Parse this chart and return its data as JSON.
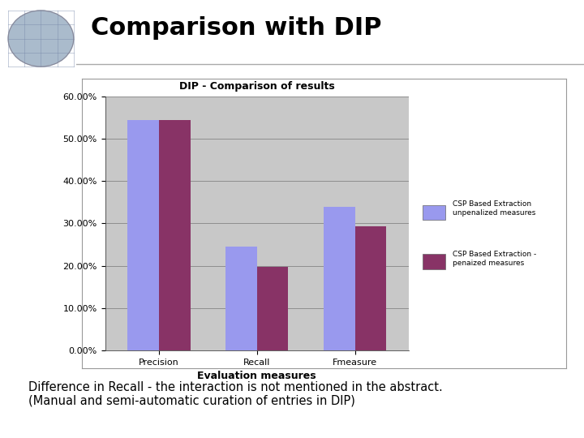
{
  "title": "DIP - Comparison of results",
  "categories": [
    "Precision",
    "Recall",
    "Fmeasure"
  ],
  "series": [
    {
      "name": "CSP Based Extraction\nunpenalized measures",
      "values": [
        0.545,
        0.245,
        0.34
      ],
      "color": "#9999EE"
    },
    {
      "name": "CSP Based Extraction -\npenaized measures",
      "values": [
        0.545,
        0.197,
        0.293
      ],
      "color": "#883366"
    }
  ],
  "xlabel": "Evaluation measures",
  "ylabel": "",
  "ylim": [
    0,
    0.6
  ],
  "yticks": [
    0.0,
    0.1,
    0.2,
    0.3,
    0.4,
    0.5,
    0.6
  ],
  "ytick_labels": [
    "0.00%",
    "10.00%",
    "20.00%",
    "30.00%",
    "40.00%",
    "50.00%",
    "60.00%"
  ],
  "slide_title": "Comparison with DIP",
  "slide_bg": "#FFFFFF",
  "chart_bg": "#C8C8C8",
  "chart_outer_bg": "#F0F0F0",
  "subtitle_text": "Difference in Recall - the interaction is not mentioned in the abstract.\n(Manual and semi-automatic curation of entries in DIP)",
  "bar_width": 0.32,
  "title_fontsize": 9,
  "axis_fontsize": 8,
  "legend_fontsize": 7.5,
  "slide_title_fontsize": 22,
  "header_line_color": "#AAAAAA",
  "globe_bg_color": "#C8D4E0"
}
